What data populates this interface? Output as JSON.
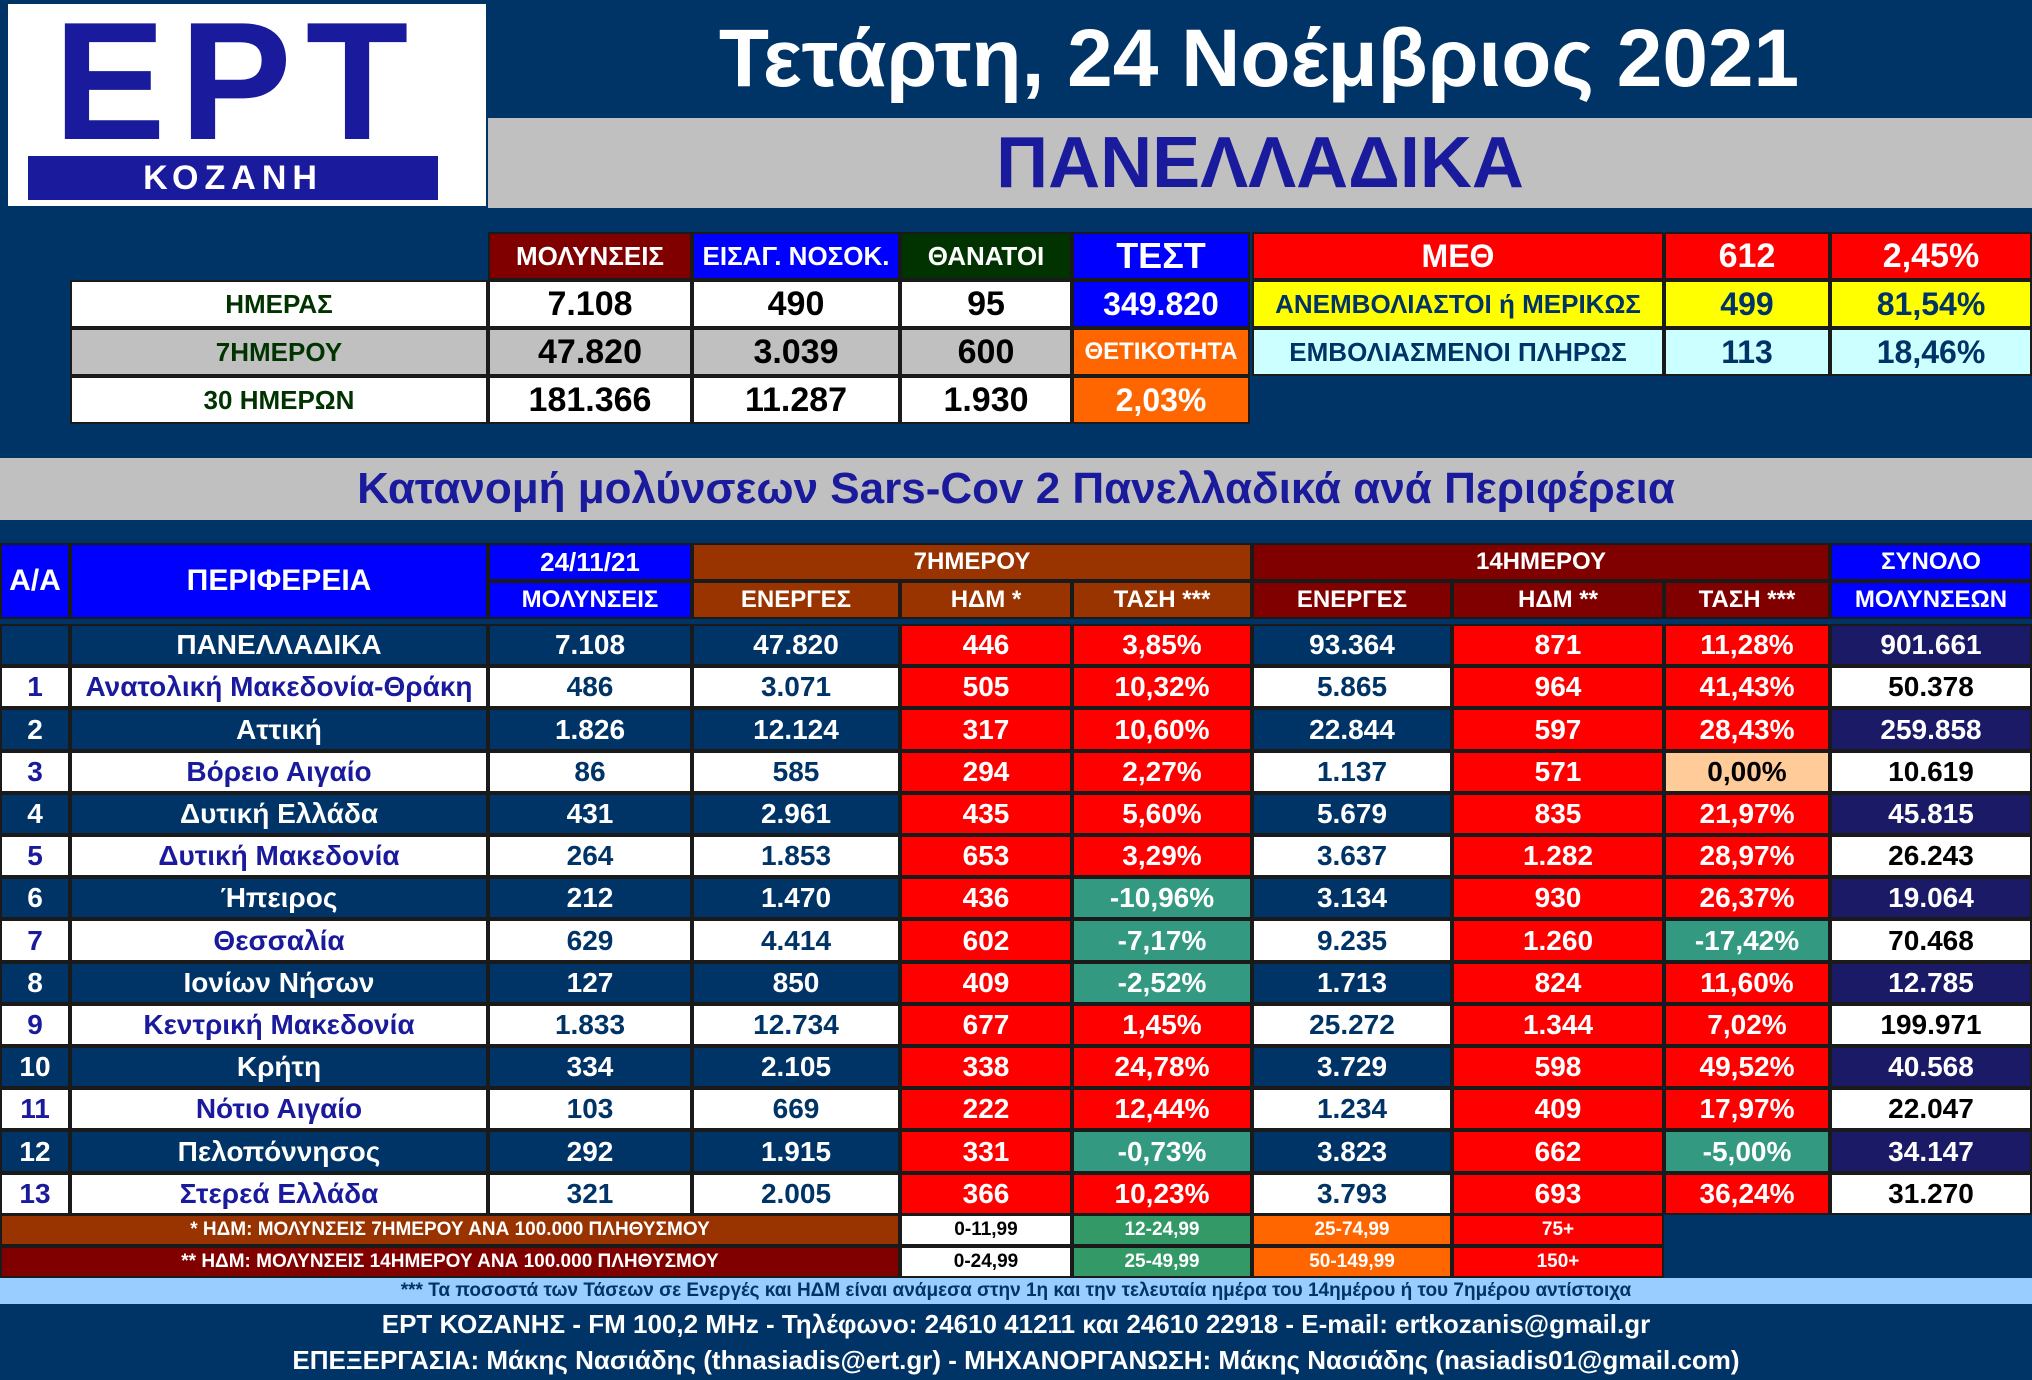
{
  "header": {
    "logo_text": "ΕΡΤ",
    "logo_sub": "ΚΟΖΑΝΗ",
    "date": "Τετάρτη, 24 Νοέμβριος 2021",
    "region": "ΠΑΝΕΛΛΑΔΙΚΑ"
  },
  "summary": {
    "col_headers": [
      "ΜΟΛΥΝΣΕΙΣ",
      "ΕΙΣΑΓ. ΝΟΣΟΚ.",
      "ΘΑΝΑΤΟΙ",
      "ΤΕΣΤ"
    ],
    "rows": [
      {
        "label": "ΗΜΕΡΑΣ",
        "values": [
          "7.108",
          "490",
          "95"
        ]
      },
      {
        "label": "7ΗΜΕΡΟΥ",
        "values": [
          "47.820",
          "3.039",
          "600"
        ]
      },
      {
        "label": "30 ΗΜΕΡΩΝ",
        "values": [
          "181.366",
          "11.287",
          "1.930"
        ]
      }
    ],
    "test_value": "349.820",
    "positivity_label": "ΘΕΤΙΚΟΤΗΤΑ",
    "positivity_value": "2,03%",
    "icu": {
      "label": "ΜΕΘ",
      "count": "612",
      "pct": "2,45%",
      "rows": [
        {
          "label": "ΑΝΕΜΒΟΛΙΑΣΤΟΙ ή ΜΕΡΙΚΩΣ",
          "count": "499",
          "pct": "81,54%"
        },
        {
          "label": "ΕΜΒΟΛΙΑΣΜΕΝΟΙ ΠΛΗΡΩΣ",
          "count": "113",
          "pct": "18,46%"
        }
      ]
    }
  },
  "distribution_title": "Κατανομή μολύνσεων Sars-Cov 2 Πανελλαδικά ανά Περιφέρεια",
  "table": {
    "h_aa": "Α/Α",
    "h_region": "ΠΕΡΙΦΕΡΕΙΑ",
    "h_date": "24/11/21",
    "h_cases": "ΜΟΛΥΝΣΕΙΣ",
    "h_7day": "7ΗΜΕΡΟΥ",
    "h_14day": "14ΗΜΕΡΟΥ",
    "h_total": "ΣΥΝΟΛΟ",
    "h_total_sub": "ΜΟΛΥΝΣΕΩΝ",
    "sub7": [
      "ΕΝΕΡΓΕΣ",
      "ΗΔΜ *",
      "ΤΑΣΗ ***"
    ],
    "sub14": [
      "ΕΝΕΡΓΕΣ",
      "ΗΔΜ **",
      "ΤΑΣΗ ***"
    ],
    "rows": [
      {
        "aa": "",
        "name": "ΠΑΝΕΛΛΑΔΙΚΑ",
        "cases": "7.108",
        "a7": "47.820",
        "h7": "446",
        "t7": "3,85%",
        "a14": "93.364",
        "h14": "871",
        "t14": "11,28%",
        "total": "901.661"
      },
      {
        "aa": "1",
        "name": "Ανατολική Μακεδονία-Θράκη",
        "cases": "486",
        "a7": "3.071",
        "h7": "505",
        "t7": "10,32%",
        "a14": "5.865",
        "h14": "964",
        "t14": "41,43%",
        "total": "50.378"
      },
      {
        "aa": "2",
        "name": "Αττική",
        "cases": "1.826",
        "a7": "12.124",
        "h7": "317",
        "t7": "10,60%",
        "a14": "22.844",
        "h14": "597",
        "t14": "28,43%",
        "total": "259.858"
      },
      {
        "aa": "3",
        "name": "Βόρειο Αιγαίο",
        "cases": "86",
        "a7": "585",
        "h7": "294",
        "t7": "2,27%",
        "a14": "1.137",
        "h14": "571",
        "t14": "0,00%",
        "total": "10.619"
      },
      {
        "aa": "4",
        "name": "Δυτική Ελλάδα",
        "cases": "431",
        "a7": "2.961",
        "h7": "435",
        "t7": "5,60%",
        "a14": "5.679",
        "h14": "835",
        "t14": "21,97%",
        "total": "45.815"
      },
      {
        "aa": "5",
        "name": "Δυτική Μακεδονία",
        "cases": "264",
        "a7": "1.853",
        "h7": "653",
        "t7": "3,29%",
        "a14": "3.637",
        "h14": "1.282",
        "t14": "28,97%",
        "total": "26.243"
      },
      {
        "aa": "6",
        "name": "Ήπειρος",
        "cases": "212",
        "a7": "1.470",
        "h7": "436",
        "t7": "-10,96%",
        "a14": "3.134",
        "h14": "930",
        "t14": "26,37%",
        "total": "19.064"
      },
      {
        "aa": "7",
        "name": "Θεσσαλία",
        "cases": "629",
        "a7": "4.414",
        "h7": "602",
        "t7": "-7,17%",
        "a14": "9.235",
        "h14": "1.260",
        "t14": "-17,42%",
        "total": "70.468"
      },
      {
        "aa": "8",
        "name": "Ιονίων Νήσων",
        "cases": "127",
        "a7": "850",
        "h7": "409",
        "t7": "-2,52%",
        "a14": "1.713",
        "h14": "824",
        "t14": "11,60%",
        "total": "12.785"
      },
      {
        "aa": "9",
        "name": "Κεντρική Μακεδονία",
        "cases": "1.833",
        "a7": "12.734",
        "h7": "677",
        "t7": "1,45%",
        "a14": "25.272",
        "h14": "1.344",
        "t14": "7,02%",
        "total": "199.971"
      },
      {
        "aa": "10",
        "name": "Κρήτη",
        "cases": "334",
        "a7": "2.105",
        "h7": "338",
        "t7": "24,78%",
        "a14": "3.729",
        "h14": "598",
        "t14": "49,52%",
        "total": "40.568"
      },
      {
        "aa": "11",
        "name": "Νότιο Αιγαίο",
        "cases": "103",
        "a7": "669",
        "h7": "222",
        "t7": "12,44%",
        "a14": "1.234",
        "h14": "409",
        "t14": "17,97%",
        "total": "22.047"
      },
      {
        "aa": "12",
        "name": "Πελοπόννησος",
        "cases": "292",
        "a7": "1.915",
        "h7": "331",
        "t7": "-0,73%",
        "a14": "3.823",
        "h14": "662",
        "t14": "-5,00%",
        "total": "34.147"
      },
      {
        "aa": "13",
        "name": "Στερεά Ελλάδα",
        "cases": "321",
        "a7": "2.005",
        "h7": "366",
        "t7": "10,23%",
        "a14": "3.793",
        "h14": "693",
        "t14": "36,24%",
        "total": "31.270"
      }
    ]
  },
  "legend": {
    "rows": [
      {
        "label": "* ΗΔΜ: ΜΟΛΥΝΣΕΙΣ 7ΗΜΕΡΟΥ ΑΝΑ 100.000 ΠΛΗΘΥΣΜΟΥ",
        "ranges": [
          "0-11,99",
          "12-24,99",
          "25-74,99",
          "75+"
        ]
      },
      {
        "label": "** ΗΔΜ: ΜΟΛΥΝΣΕΙΣ 14ΗΜΕΡΟΥ ΑΝΑ 100.000 ΠΛΗΘΥΣΜΟΥ",
        "ranges": [
          "0-24,99",
          "25-49,99",
          "50-149,99",
          "150+"
        ]
      }
    ],
    "colors": [
      "#ffffff",
      "#339966",
      "#ff6600",
      "#ff0000"
    ]
  },
  "footer": {
    "note": "*** Τα ποσοστά των Τάσεων σε Ενεργές και ΗΔΜ είναι ανάμεσα στην 1η και την τελευταία ημέρα του 14ημέρου ή του 7ημέρου αντίστοιχα",
    "contact": "ΕΡΤ ΚΟΖΑΝΗΣ - FM 100,2 MHz - Τηλέφωνο:  24610 41211 και 24610 22918 - E-mail: ertkozanis@gmail.gr",
    "credits": "ΕΠΕΞΕΡΓΑΣΙΑ: Μάκης Νασιάδης (thnasiadis@ert.gr) - ΜΗΧΑΝΟΡΓΑΝΩΣΗ: Μάκης Νασιάδης (nasiadis01@gmail.com)"
  },
  "colors": {
    "navy": "#003366",
    "blue": "#0000ff",
    "dark_red": "#800000",
    "dark_green": "#003300",
    "orange_brown": "#993300",
    "red": "#ff0000",
    "teal": "#339980",
    "peach": "#ffcc99",
    "yellow": "#ffff00",
    "light_cyan": "#ccffff",
    "orange": "#ff6600",
    "title_blue": "#1a1a9c"
  }
}
